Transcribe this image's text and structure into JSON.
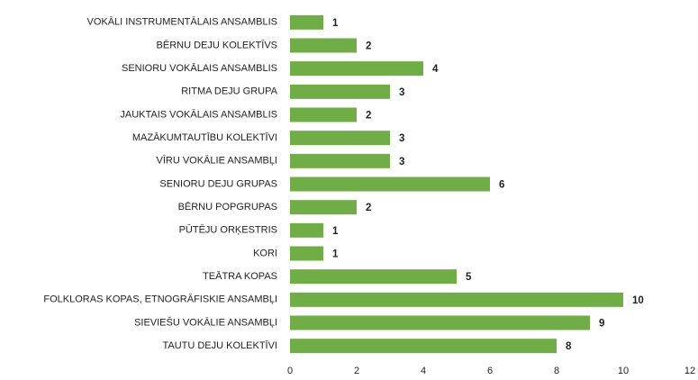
{
  "chart_data": {
    "type": "bar",
    "orientation": "horizontal",
    "categories": [
      "VOKĀLI INSTRUMENTĀLAIS ANSAMBLIS",
      "BĒRNU DEJU KOLEKTĪVS",
      "SENIORU VOKĀLAIS ANSAMBLIS",
      "RITMA DEJU GRUPA",
      "JAUKTAIS VOKĀLAIS ANSAMBLIS",
      "MAZĀKUMTAUTĪBU KOLEKTĪVI",
      "VĪRU VOKĀLIE ANSAMBĻI",
      "SENIORU DEJU GRUPAS",
      "BĒRNU POPGRUPAS",
      "PŪTĒJU ORĶESTRIS",
      "KORI",
      "TEĀTRA KOPAS",
      "FOLKLORAS KOPAS, ETNOGRĀFISKIE ANSAMBĻI",
      "SIEVIEŠU VOKĀLIE ANSAMBĻI",
      "TAUTU DEJU KOLEKTĪVI"
    ],
    "values": [
      1,
      2,
      4,
      3,
      2,
      3,
      3,
      6,
      2,
      1,
      1,
      5,
      10,
      9,
      8
    ],
    "color": "#70ad47",
    "xlim": [
      0,
      12
    ],
    "xticks": [
      0,
      2,
      4,
      6,
      8,
      10,
      12
    ],
    "grid": false
  }
}
